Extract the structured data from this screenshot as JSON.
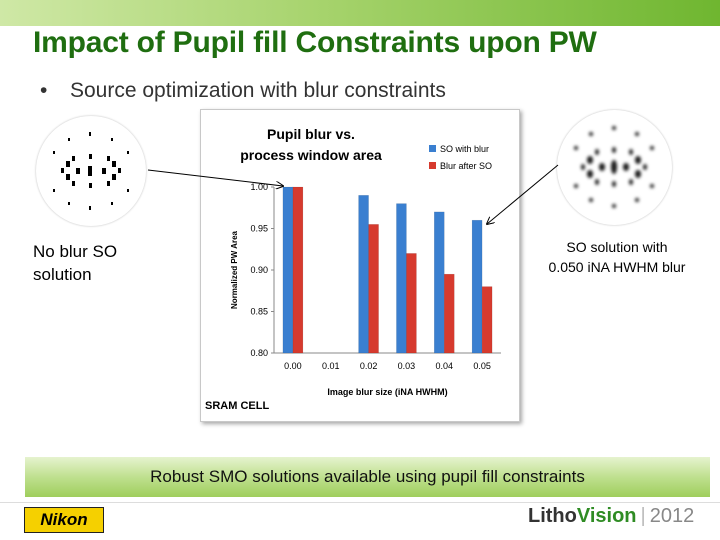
{
  "slide": {
    "title": "Impact of Pupil fill Constraints upon PW",
    "bullet": "Source optimization with blur constraints",
    "caption_left_line1": "No blur SO",
    "caption_left_line2": "solution",
    "caption_right_line1": "SO solution with",
    "caption_right_line2": "0.050 iNA HWHM blur",
    "banner": "Robust SMO solutions available using pupil fill constraints",
    "logo_left": "Nikon",
    "logo_right_part1": "Litho",
    "logo_right_part2": "Vision",
    "logo_right_sep": "|",
    "logo_right_year": "2012"
  },
  "chart_data": {
    "type": "bar",
    "title_line1": "Pupil blur vs.",
    "title_line2": "process window area",
    "xlabel": "Image blur size (iNA HWHM)",
    "ylabel": "Normalized PW Area",
    "annotation": "SRAM CELL",
    "categories": [
      "0.00",
      "0.01",
      "0.02",
      "0.03",
      "0.04",
      "0.05"
    ],
    "yticks": [
      "0.80",
      "0.85",
      "0.90",
      "0.95",
      "1.00"
    ],
    "ylim": [
      0.8,
      1.0
    ],
    "grid": false,
    "legend_position": "top-right",
    "series": [
      {
        "name": "SO with blur",
        "color": "#3a7fd0",
        "values": [
          1.0,
          null,
          0.99,
          0.98,
          0.97,
          0.96
        ]
      },
      {
        "name": "Blur after SO",
        "color": "#d63a2e",
        "values": [
          1.0,
          null,
          0.955,
          0.92,
          0.895,
          0.88
        ]
      }
    ]
  }
}
